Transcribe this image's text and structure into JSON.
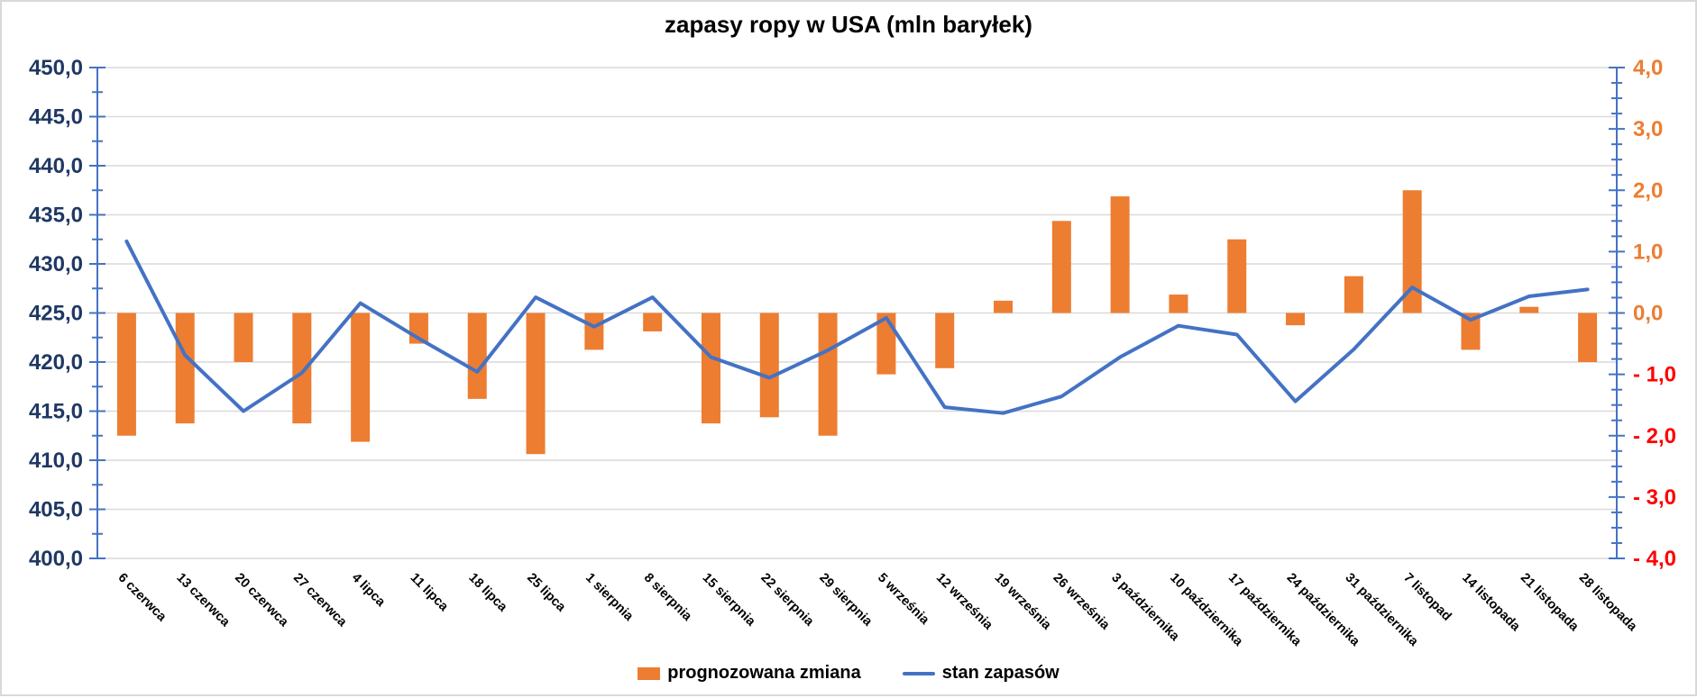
{
  "chart": {
    "title": "zapasy ropy w USA (mln baryłek)",
    "legend": {
      "bars_label": "prognozowana zmiana",
      "line_label": "stan zapasów"
    },
    "left_axis": {
      "min": 400,
      "max": 450,
      "step": 5,
      "minor_step": 2.5,
      "labels_top_down": [
        "450,0",
        "445,0",
        "440,0",
        "435,0",
        "430,0",
        "425,0",
        "420,0",
        "415,0",
        "410,0",
        "405,0",
        "400,0"
      ]
    },
    "right_axis": {
      "min": -4,
      "max": 4,
      "step": 1,
      "minor_step": 0.25,
      "labels_top_down": [
        "4,0",
        "3,0",
        "2,0",
        "1,0",
        "0,0",
        "- 1,0",
        "- 2,0",
        "- 3,0",
        "- 4,0"
      ]
    },
    "colors": {
      "bar": "#ED7D31",
      "line": "#4472C4",
      "axis": "#4472C4",
      "grid": "#D9D9D9",
      "left_axis_label": "#1F3864",
      "right_axis_label_positive": "#ED7D31",
      "right_axis_label_negative": "#FF0000",
      "x_axis_label": "#000000",
      "title": "#000000"
    }
  },
  "chart_data": {
    "type": "combo-bar-line",
    "title": "zapasy ropy w USA (mln baryłek)",
    "categories": [
      "6 czerwca",
      "13 czerwca",
      "20 czerwca",
      "27 czerwca",
      "4 lipca",
      "11 lipca",
      "18 lipca",
      "25 lipca",
      "1 sierpnia",
      "8 sierpnia",
      "15 sierpnia",
      "22 sierpnia",
      "29 sierpnia",
      "5 września",
      "12 września",
      "19 września",
      "26 września",
      "3 października",
      "10 października",
      "17 października",
      "24 października",
      "31 października",
      "7 listopad",
      "14 listopada",
      "21 listopada",
      "28 listopada"
    ],
    "series": [
      {
        "name": "prognozowana zmiana",
        "type": "bar",
        "axis": "right",
        "values": [
          -2.0,
          -1.8,
          -0.8,
          -1.8,
          -2.1,
          -0.5,
          -1.4,
          -2.3,
          -0.6,
          -0.3,
          -1.8,
          -1.7,
          -2.0,
          -1.0,
          -0.9,
          0.2,
          1.5,
          1.9,
          0.3,
          1.2,
          -0.2,
          0.6,
          2.0,
          -0.6,
          0.1,
          -0.8
        ]
      },
      {
        "name": "stan zapasów",
        "type": "line",
        "axis": "left",
        "values": [
          432.3,
          420.7,
          415.0,
          418.9,
          426.0,
          422.4,
          419.0,
          426.6,
          423.6,
          426.6,
          420.5,
          418.4,
          421.2,
          424.5,
          415.4,
          414.8,
          416.5,
          420.5,
          423.7,
          422.8,
          416.0,
          421.3,
          427.6,
          424.3,
          426.7,
          427.4
        ]
      }
    ],
    "left_ylim": [
      400,
      450
    ],
    "right_ylim": [
      -4,
      4
    ],
    "grid": true,
    "legend_position": "bottom"
  }
}
